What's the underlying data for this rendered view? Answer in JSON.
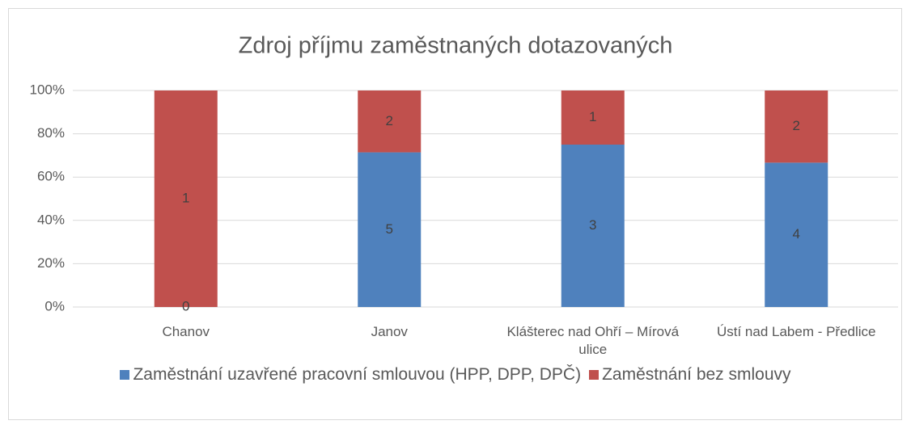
{
  "chart_data": {
    "type": "bar",
    "stacking": "percent",
    "title": "Zdroj příjmu zaměstnaných dotazovaných",
    "categories": [
      "Chanov",
      "Janov",
      "Klášterec nad Ohří – Mírová ulice",
      "Ústí nad Labem - Předlice"
    ],
    "series": [
      {
        "name": "Zaměstnání uzavřené pracovní smlouvou (HPP, DPP, DPČ)",
        "color": "#4f81bd",
        "values": [
          0,
          5,
          3,
          4
        ]
      },
      {
        "name": "Zaměstnání bez smlouvy",
        "color": "#c0504d",
        "values": [
          1,
          2,
          1,
          2
        ]
      }
    ],
    "ylim": [
      0,
      100
    ],
    "yticks": [
      {
        "value": 0,
        "label": "0%"
      },
      {
        "value": 20,
        "label": "20%"
      },
      {
        "value": 40,
        "label": "40%"
      },
      {
        "value": 60,
        "label": "60%"
      },
      {
        "value": 80,
        "label": "80%"
      },
      {
        "value": 100,
        "label": "100%"
      }
    ],
    "grid": true,
    "legend": "bottom"
  }
}
